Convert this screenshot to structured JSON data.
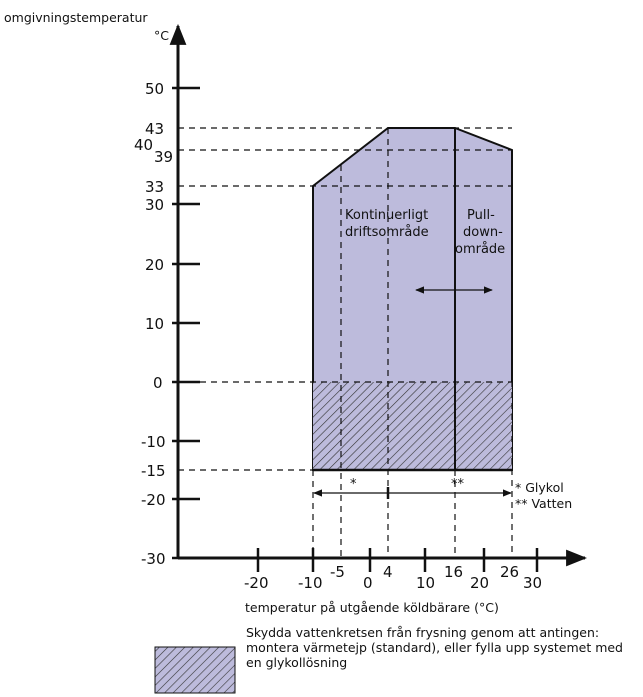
{
  "y_axis": {
    "title": "omgivningstemperatur",
    "unit": "°C",
    "ticks": [
      "50",
      "30",
      "20",
      "10",
      "0",
      "-10",
      "-20",
      "-30"
    ],
    "marked_values": [
      "43",
      "40",
      "39",
      "33",
      "-15"
    ]
  },
  "x_axis": {
    "title": "temperatur på utgående köldbärare (°C)",
    "ticks": [
      "-20",
      "-10",
      "-5",
      "0",
      "4",
      "10",
      "16",
      "20",
      "26",
      "30"
    ]
  },
  "regions": {
    "continuous_label_line1": "Kontinuerligt",
    "continuous_label_line2": "driftsområde",
    "pulldown_label_line1": "Pull-",
    "pulldown_label_line2": "down-",
    "pulldown_label_line3": "område"
  },
  "range_marks": {
    "glycol_mark": "*",
    "water_mark": "**",
    "glycol_note": "* Glykol",
    "water_note": "** Vatten"
  },
  "legend": {
    "text": "Skydda vattenkretsen från frysning genom att antingen: montera värmetejp (standard), eller fylla upp systemet med en glykollösning"
  },
  "colors": {
    "region_fill": "#bdbbdc",
    "axis": "#111111",
    "hatch": "#333333"
  },
  "chart_data": {
    "type": "area",
    "xlabel": "temperatur på utgående köldbärare (°C)",
    "ylabel": "omgivningstemperatur °C",
    "xlim": [
      -30,
      35
    ],
    "ylim": [
      -30,
      55
    ],
    "operating_envelope": {
      "x": [
        -10,
        4,
        16,
        26,
        26,
        -10
      ],
      "y": [
        33,
        43,
        43,
        40,
        -15,
        -15
      ]
    },
    "pulldown_boundary_x": 16,
    "freeze_protection_zone": {
      "x_range": [
        -10,
        26
      ],
      "y_range": [
        -15,
        0
      ]
    },
    "glycol_range": [
      -10,
      26
    ],
    "water_range": [
      -5,
      26
    ],
    "grid": false,
    "legend": "bottom"
  }
}
